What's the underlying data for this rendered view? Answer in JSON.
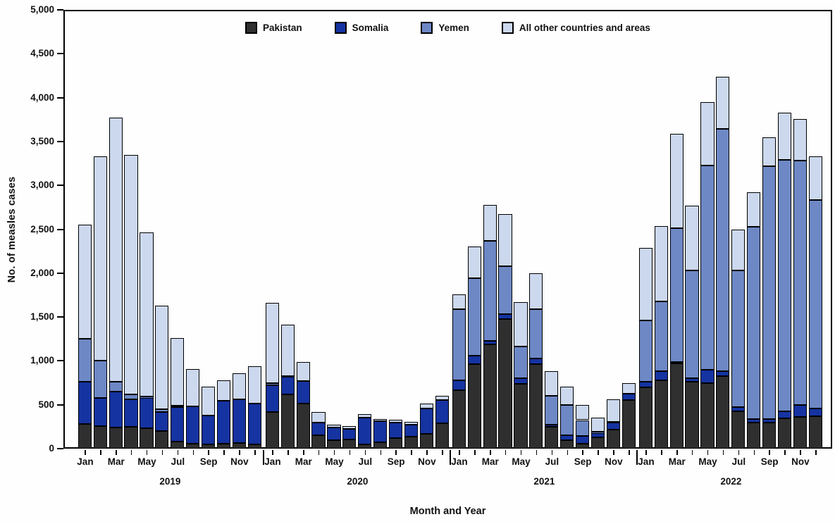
{
  "figure": {
    "background": "#fdfefd",
    "frame_color": "#000000"
  },
  "chart_data": {
    "type": "bar",
    "stacked": true,
    "title": "",
    "xlabel": "Month and Year",
    "ylabel": "No. of measles cases",
    "ylim": [
      0,
      5000
    ],
    "ytick_step": 500,
    "ytick_labels": [
      "0",
      "500",
      "1,000",
      "1,500",
      "2,000",
      "2,500",
      "3,000",
      "3,500",
      "4,000",
      "4,500",
      "5,000"
    ],
    "grid": false,
    "legend_position": "top-center",
    "years": [
      "2019",
      "2020",
      "2021",
      "2022"
    ],
    "month_tick_labels": [
      "Jan",
      "Mar",
      "May",
      "Jul",
      "Sep",
      "Nov"
    ],
    "categories": [
      "Jan 2019",
      "Feb 2019",
      "Mar 2019",
      "Apr 2019",
      "May 2019",
      "Jun 2019",
      "Jul 2019",
      "Aug 2019",
      "Sep 2019",
      "Oct 2019",
      "Nov 2019",
      "Dec 2019",
      "Jan 2020",
      "Feb 2020",
      "Mar 2020",
      "Apr 2020",
      "May 2020",
      "Jun 2020",
      "Jul 2020",
      "Aug 2020",
      "Sep 2020",
      "Oct 2020",
      "Nov 2020",
      "Dec 2020",
      "Jan 2021",
      "Feb 2021",
      "Mar 2021",
      "Apr 2021",
      "May 2021",
      "Jun 2021",
      "Jul 2021",
      "Aug 2021",
      "Sep 2021",
      "Oct 2021",
      "Nov 2021",
      "Dec 2021",
      "Jan 2022",
      "Feb 2022",
      "Mar 2022",
      "Apr 2022",
      "May 2022",
      "Jun 2022",
      "Jul 2022",
      "Aug 2022",
      "Sep 2022",
      "Oct 2022",
      "Nov 2022",
      "Dec 2022"
    ],
    "series": [
      {
        "name": "Pakistan",
        "color": "#2f2f2f",
        "values": [
          280,
          260,
          240,
          245,
          230,
          200,
          80,
          55,
          45,
          55,
          65,
          50,
          415,
          620,
          515,
          155,
          95,
          105,
          50,
          75,
          120,
          135,
          170,
          285,
          670,
          965,
          1185,
          1475,
          735,
          965,
          245,
          100,
          55,
          130,
          215,
          550,
          700,
          780,
          970,
          765,
          750,
          825,
          425,
          300,
          295,
          345,
          365,
          370
        ]
      },
      {
        "name": "Somalia",
        "color": "#1533a1",
        "values": [
          485,
          320,
          410,
          315,
          350,
          215,
          390,
          430,
          330,
          490,
          495,
          460,
          310,
          195,
          255,
          140,
          145,
          120,
          305,
          235,
          175,
          140,
          290,
          270,
          105,
          95,
          45,
          55,
          70,
          65,
          25,
          50,
          90,
          50,
          80,
          80,
          65,
          100,
          20,
          40,
          150,
          55,
          45,
          35,
          40,
          80,
          130,
          85
        ]
      },
      {
        "name": "Yemen",
        "color": "#6d88c5",
        "values": [
          490,
          425,
          115,
          60,
          10,
          35,
          20,
          0,
          0,
          0,
          0,
          0,
          20,
          15,
          0,
          0,
          0,
          0,
          0,
          0,
          0,
          0,
          0,
          0,
          815,
          880,
          1135,
          545,
          360,
          560,
          335,
          350,
          180,
          10,
          10,
          0,
          695,
          800,
          1525,
          1225,
          2325,
          2760,
          1560,
          2190,
          2885,
          2865,
          2790,
          2375
        ]
      },
      {
        "name": "All other countries and areas",
        "color": "#ccd8ed",
        "values": [
          1295,
          2325,
          3005,
          2730,
          1870,
          1180,
          770,
          425,
          335,
          235,
          295,
          430,
          915,
          580,
          220,
          120,
          35,
          35,
          35,
          30,
          35,
          30,
          50,
          50,
          165,
          360,
          410,
          595,
          505,
          405,
          280,
          205,
          170,
          160,
          260,
          115,
          830,
          855,
          1070,
          740,
          725,
          600,
          470,
          400,
          330,
          540,
          475,
          500
        ]
      }
    ]
  }
}
